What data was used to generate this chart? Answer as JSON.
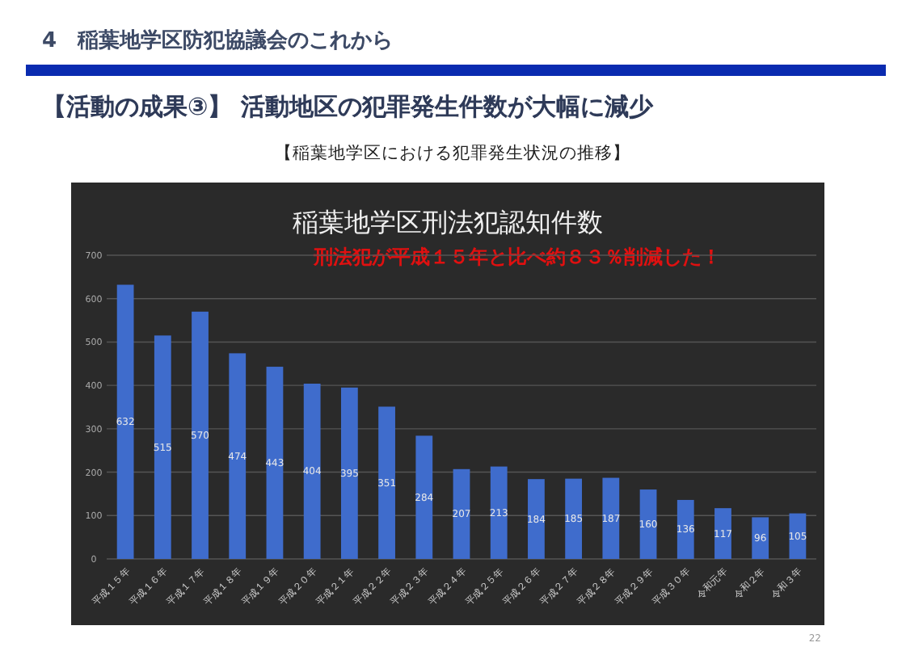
{
  "chart_data": {
    "type": "bar",
    "title": "稲葉地学区刑法犯認知件数",
    "subtitle": "刑法犯が平成１５年と比べ約８３％削減した！",
    "annotations": [
      "4　稲葉地学区防犯協議会のこれから",
      "【活動の成果③】 活動地区の犯罪発生件数が大幅に減少",
      "【稲葉地学区における犯罪発生状況の推移】",
      "22"
    ],
    "categories": [
      "平成１５年",
      "平成１６年",
      "平成１７年",
      "平成１８年",
      "平成１９年",
      "平成２０年",
      "平成２１年",
      "平成２２年",
      "平成２３年",
      "平成２４年",
      "平成２５年",
      "平成２６年",
      "平成２７年",
      "平成２８年",
      "平成２９年",
      "平成３０年",
      "令和元年",
      "令和２年",
      "令和３年"
    ],
    "values": [
      632,
      515,
      570,
      474,
      443,
      404,
      395,
      351,
      284,
      207,
      213,
      184,
      185,
      187,
      160,
      136,
      117,
      96,
      105
    ],
    "color": "#3f6ccc",
    "ylim": [
      0,
      700
    ],
    "yticks": [
      0,
      100,
      200,
      300,
      400,
      500,
      600,
      700
    ],
    "grid": "y",
    "data_labels": true
  }
}
